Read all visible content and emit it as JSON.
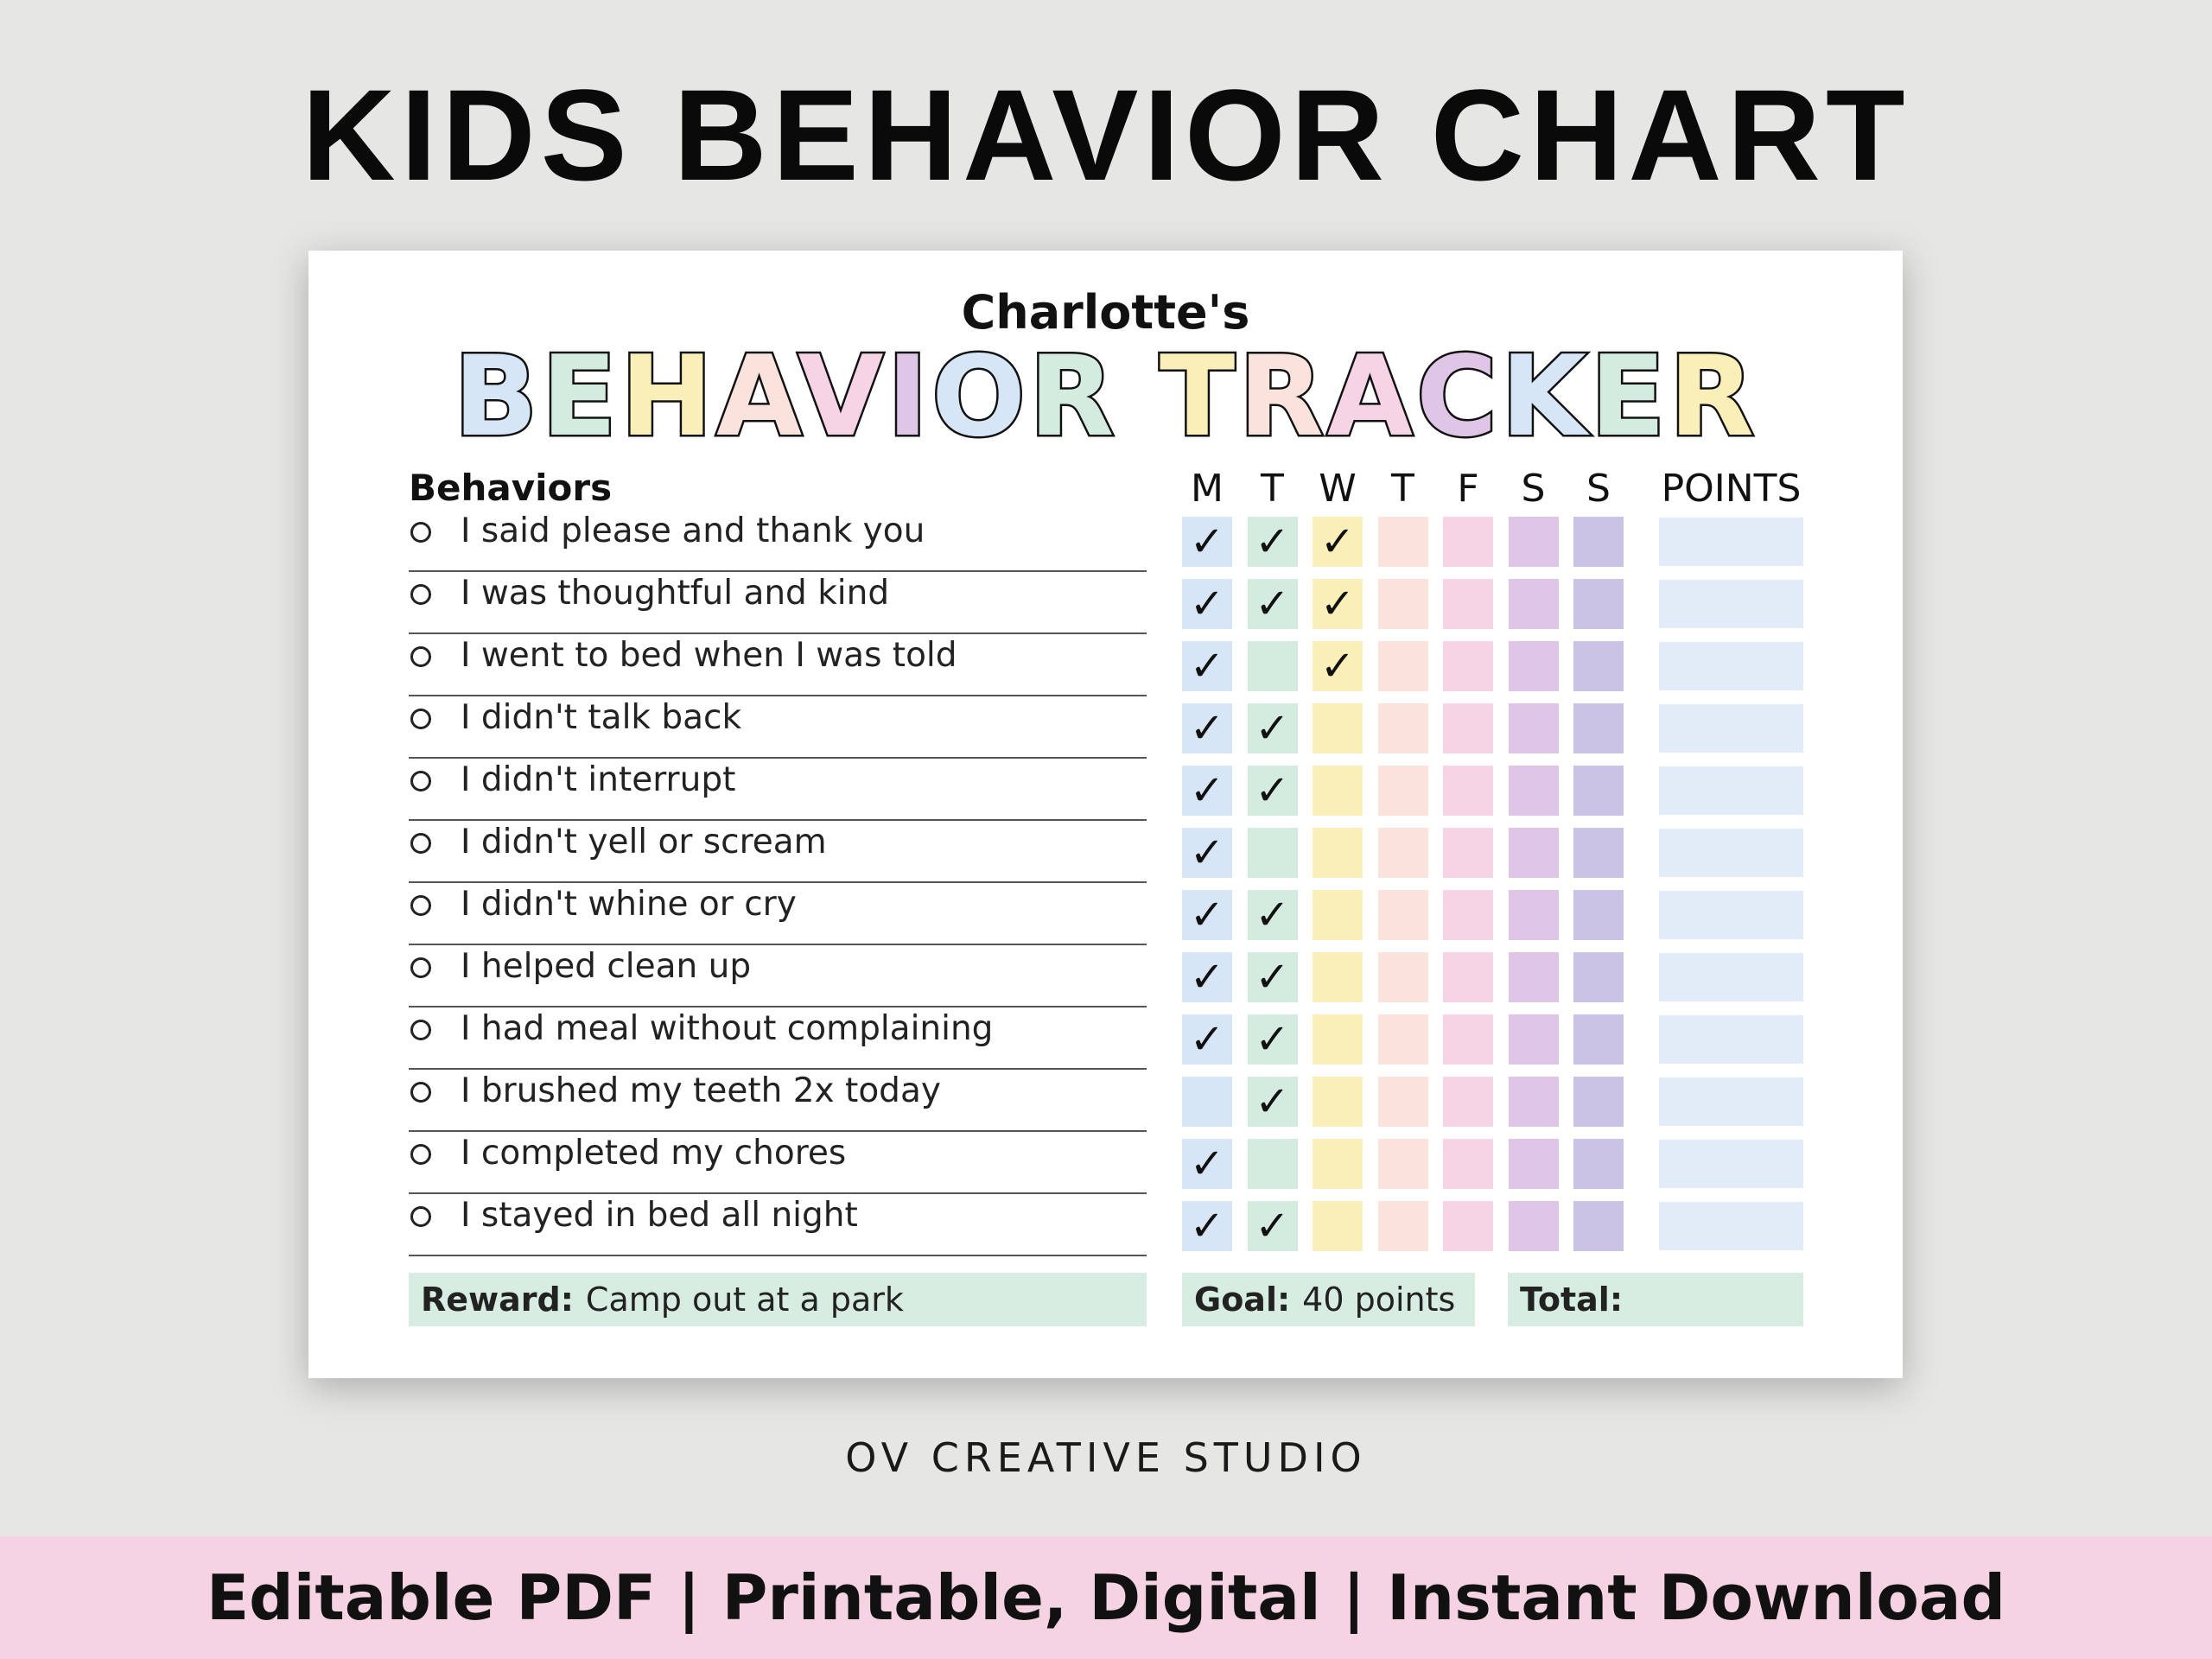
{
  "headline": "KIDS BEHAVIOR CHART",
  "card": {
    "owner": "Charlotte's",
    "title_letters": [
      [
        "B",
        "#d6e6f7"
      ],
      [
        "E",
        "#d4ece0"
      ],
      [
        "H",
        "#faefb8"
      ],
      [
        "A",
        "#fbe3dd"
      ],
      [
        "V",
        "#f7d3e6"
      ],
      [
        "I",
        "#e0c6e6"
      ],
      [
        "O",
        "#d6e6f7"
      ],
      [
        "R",
        "#d4ece0"
      ],
      [
        " ",
        ""
      ],
      [
        "T",
        "#faefb8"
      ],
      [
        "R",
        "#fbe3dd"
      ],
      [
        "A",
        "#f7d3e6"
      ],
      [
        "C",
        "#e0c6e6"
      ],
      [
        "K",
        "#d6e6f7"
      ],
      [
        "E",
        "#d4ece0"
      ],
      [
        "R",
        "#faefb8"
      ]
    ],
    "behaviors_header": "Behaviors",
    "days": [
      "M",
      "T",
      "W",
      "T",
      "F",
      "S",
      "S"
    ],
    "day_colors": [
      "#d6e6f7",
      "#d4ece0",
      "#faefb8",
      "#fbe3dd",
      "#f7d3e6",
      "#e0c6e6",
      "#cbc3e6"
    ],
    "points_header": "POINTS",
    "check_glyph": "✓",
    "rows": [
      {
        "label": "I said please and thank you",
        "checks": [
          1,
          1,
          1,
          0,
          0,
          0,
          0
        ]
      },
      {
        "label": "I was thoughtful and kind",
        "checks": [
          1,
          1,
          1,
          0,
          0,
          0,
          0
        ]
      },
      {
        "label": "I went to bed when I was told",
        "checks": [
          1,
          0,
          1,
          0,
          0,
          0,
          0
        ]
      },
      {
        "label": "I didn't talk back",
        "checks": [
          1,
          1,
          0,
          0,
          0,
          0,
          0
        ]
      },
      {
        "label": "I didn't interrupt",
        "checks": [
          1,
          1,
          0,
          0,
          0,
          0,
          0
        ]
      },
      {
        "label": "I didn't yell or scream",
        "checks": [
          1,
          0,
          0,
          0,
          0,
          0,
          0
        ]
      },
      {
        "label": "I didn't whine or cry",
        "checks": [
          1,
          1,
          0,
          0,
          0,
          0,
          0
        ]
      },
      {
        "label": "I helped clean up",
        "checks": [
          1,
          1,
          0,
          0,
          0,
          0,
          0
        ]
      },
      {
        "label": "I had meal without complaining",
        "checks": [
          1,
          1,
          0,
          0,
          0,
          0,
          0
        ]
      },
      {
        "label": "I brushed my teeth 2x today",
        "checks": [
          0,
          1,
          0,
          0,
          0,
          0,
          0
        ]
      },
      {
        "label": "I completed my chores",
        "checks": [
          1,
          0,
          0,
          0,
          0,
          0,
          0
        ]
      },
      {
        "label": "I stayed in bed all night",
        "checks": [
          1,
          1,
          0,
          0,
          0,
          0,
          0
        ]
      }
    ],
    "reward_label": "Reward:",
    "reward_value": "Camp out at a park",
    "goal_label": "Goal:",
    "goal_value": "40 points",
    "total_label": "Total:"
  },
  "studio": "OV CREATIVE STUDIO",
  "banner": "Editable PDF | Printable, Digital  |  Instant Download"
}
